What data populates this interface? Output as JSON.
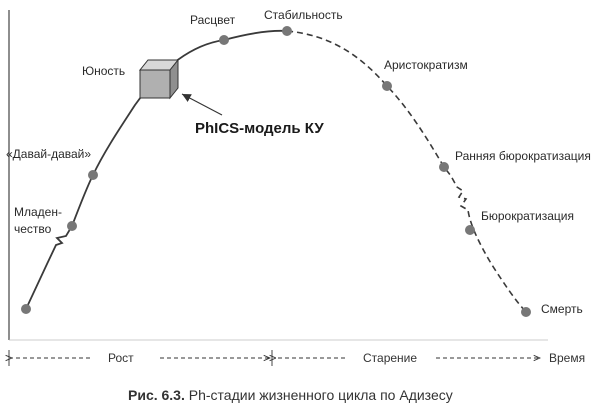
{
  "stages": [
    {
      "id": "infancy",
      "label": "Младен-",
      "label2": "чество"
    },
    {
      "id": "go-go",
      "label": "«Давай-давай»"
    },
    {
      "id": "adolescence",
      "label": "Юность"
    },
    {
      "id": "prime",
      "label": "Расцвет"
    },
    {
      "id": "stable",
      "label": "Стабильность"
    },
    {
      "id": "aristocracy",
      "label": "Аристократизм"
    },
    {
      "id": "early-bureaucracy",
      "label": "Ранняя бюрократизация"
    },
    {
      "id": "bureaucracy",
      "label": "Бюрократизация"
    },
    {
      "id": "death",
      "label": "Смерть"
    }
  ],
  "model_label": "PhICS-модель КУ",
  "axis": {
    "growth": "Рост",
    "aging": "Старение",
    "time": "Время"
  },
  "caption": {
    "number": "Рис. 6.3.",
    "text": " Ph-стадии жизненного цикла по Адизесу"
  }
}
